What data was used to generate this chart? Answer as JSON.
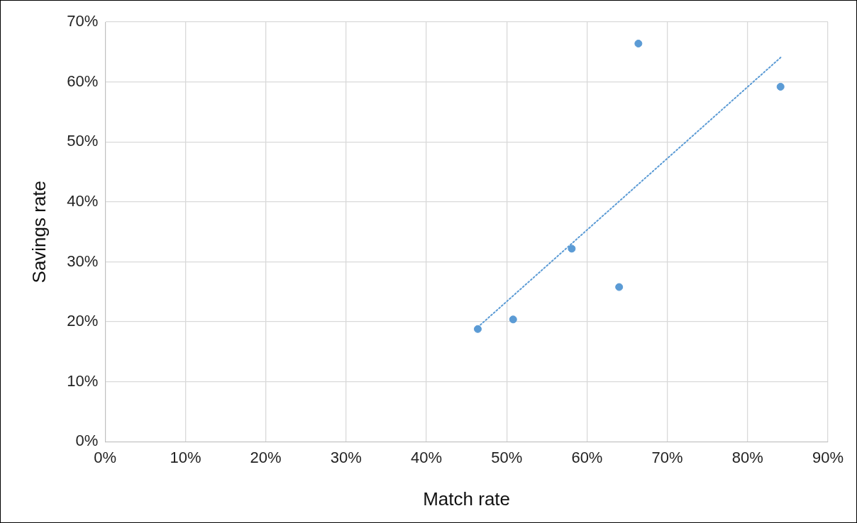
{
  "chart_data": {
    "type": "scatter",
    "xlabel": "Match rate",
    "ylabel": "Savings rate",
    "xlim": [
      0,
      90
    ],
    "ylim": [
      0,
      70
    ],
    "xticks": [
      {
        "value": 0,
        "label": "0%"
      },
      {
        "value": 10,
        "label": "10%"
      },
      {
        "value": 20,
        "label": "20%"
      },
      {
        "value": 30,
        "label": "30%"
      },
      {
        "value": 40,
        "label": "40%"
      },
      {
        "value": 50,
        "label": "50%"
      },
      {
        "value": 60,
        "label": "60%"
      },
      {
        "value": 70,
        "label": "70%"
      },
      {
        "value": 80,
        "label": "80%"
      },
      {
        "value": 90,
        "label": "90%"
      }
    ],
    "yticks": [
      {
        "value": 0,
        "label": "0%"
      },
      {
        "value": 10,
        "label": "10%"
      },
      {
        "value": 20,
        "label": "20%"
      },
      {
        "value": 30,
        "label": "30%"
      },
      {
        "value": 40,
        "label": "40%"
      },
      {
        "value": 50,
        "label": "50%"
      },
      {
        "value": 60,
        "label": "60%"
      },
      {
        "value": 70,
        "label": "70%"
      }
    ],
    "grid": true,
    "legend": false,
    "marker": "circle",
    "series": [
      {
        "color": "#5b9bd5",
        "x": [
          46.4,
          50.8,
          58.1,
          64.0,
          66.4,
          84.1
        ],
        "values": [
          18.8,
          20.4,
          32.2,
          25.8,
          66.4,
          59.2
        ]
      },
      {
        "type": "line",
        "color": "#5b9bd5",
        "line_style": "dotted",
        "marker": "none",
        "x": [
          46.4,
          84.3
        ],
        "values": [
          19.1,
          64.3
        ]
      }
    ]
  }
}
